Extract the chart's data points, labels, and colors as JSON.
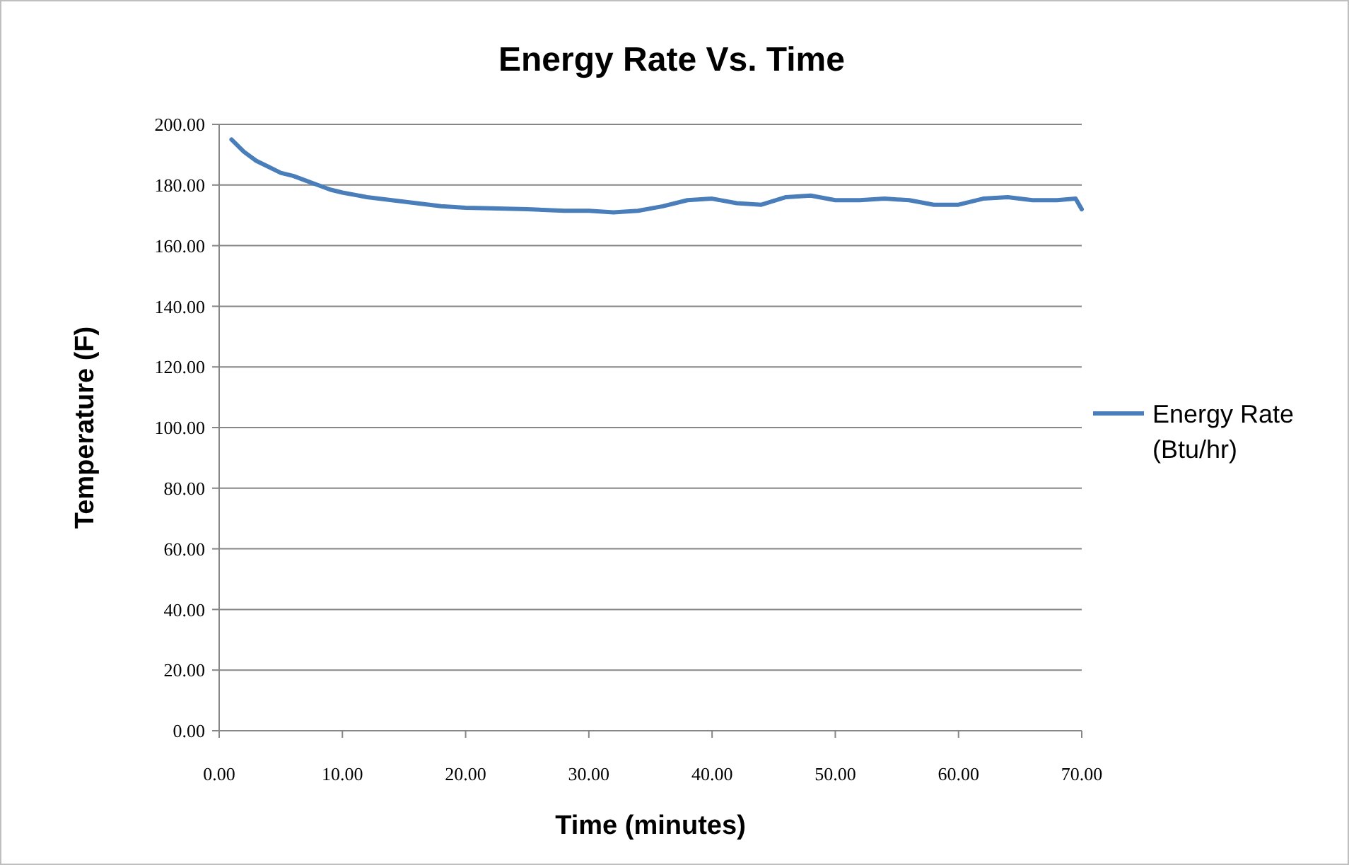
{
  "chart_data": {
    "type": "line",
    "title": "Energy Rate Vs. Time",
    "xlabel": "Time (minutes)",
    "ylabel": "Temperature (F)",
    "xlim": [
      0,
      70
    ],
    "ylim": [
      0,
      200
    ],
    "xticks": [
      {
        "value": 0,
        "label": "0.00"
      },
      {
        "value": 10,
        "label": "10.00"
      },
      {
        "value": 20,
        "label": "20.00"
      },
      {
        "value": 30,
        "label": "30.00"
      },
      {
        "value": 40,
        "label": "40.00"
      },
      {
        "value": 50,
        "label": "50.00"
      },
      {
        "value": 60,
        "label": "60.00"
      },
      {
        "value": 70,
        "label": "70.00"
      }
    ],
    "yticks": [
      {
        "value": 0,
        "label": "0.00"
      },
      {
        "value": 20,
        "label": "20.00"
      },
      {
        "value": 40,
        "label": "40.00"
      },
      {
        "value": 60,
        "label": "60.00"
      },
      {
        "value": 80,
        "label": "80.00"
      },
      {
        "value": 100,
        "label": "100.00"
      },
      {
        "value": 120,
        "label": "120.00"
      },
      {
        "value": 140,
        "label": "140.00"
      },
      {
        "value": 160,
        "label": "160.00"
      },
      {
        "value": 180,
        "label": "180.00"
      },
      {
        "value": 200,
        "label": "200.00"
      }
    ],
    "grid": "y",
    "legend": "right",
    "marker": "none",
    "line_style": "solid",
    "x": [
      1,
      2,
      3,
      4,
      5,
      6,
      7,
      8,
      9,
      10,
      12,
      14,
      16,
      18,
      20,
      22,
      25,
      28,
      30,
      32,
      34,
      36,
      38,
      40,
      42,
      44,
      46,
      48,
      50,
      52,
      54,
      56,
      58,
      60,
      62,
      64,
      66,
      68,
      69.5,
      70
    ],
    "series": [
      {
        "name": "Energy Rate (Btu/hr)",
        "color": "#4a7ebb",
        "values": [
          195,
          191,
          188,
          186,
          184,
          183,
          181.5,
          180,
          178.5,
          177.5,
          176,
          175,
          174,
          173,
          172.5,
          172.3,
          172,
          171.5,
          171.5,
          171,
          171.5,
          173,
          175,
          175.5,
          174,
          173.5,
          176,
          176.5,
          175,
          175,
          175.5,
          175,
          173.5,
          173.5,
          175.5,
          176,
          175,
          175,
          175.5,
          172
        ]
      }
    ]
  }
}
